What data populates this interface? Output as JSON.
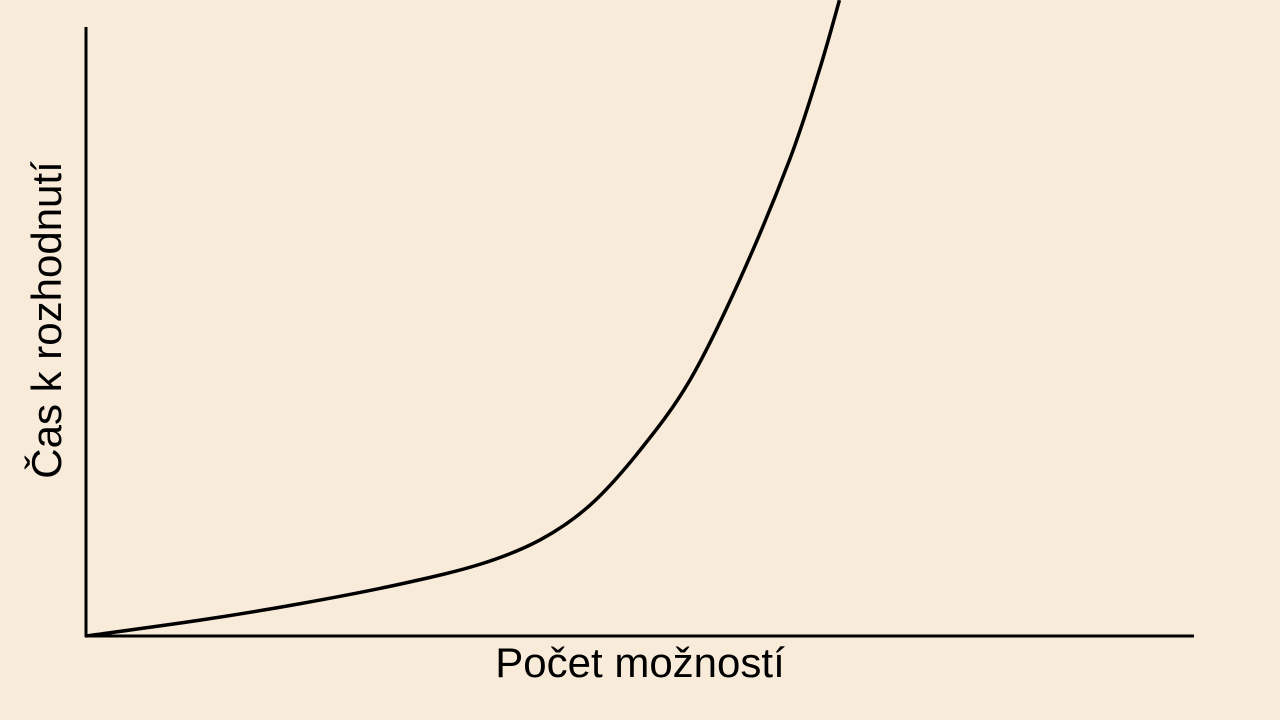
{
  "chart_data": {
    "type": "line",
    "x_label": "Počet možností",
    "y_label": "Čas k rozhodnutí",
    "x": [
      0,
      10.3,
      19.3,
      28.3,
      35.6,
      41,
      45.5,
      50,
      54.5,
      59,
      63.5,
      66.2,
      68
    ],
    "series": [
      {
        "color": "#000000",
        "values": [
          0,
          2.6,
          5.3,
          8.5,
          11.8,
          15.8,
          21.5,
          30.5,
          42,
          58.5,
          78.2,
          93,
          104.4
        ]
      }
    ],
    "xlim": [
      0,
      100
    ],
    "ylim": [
      0,
      100
    ]
  }
}
